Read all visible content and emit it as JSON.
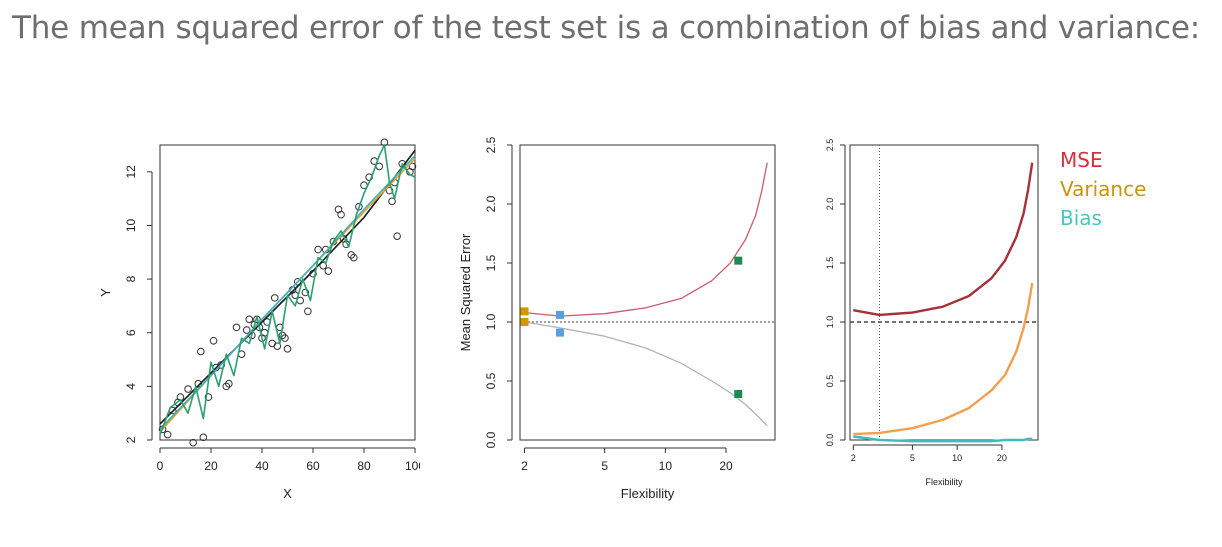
{
  "headline": "The mean squared error of the test set is a combination of bias and variance:",
  "chart_data": [
    {
      "type": "scatter",
      "xlabel": "X",
      "ylabel": "Y",
      "xlim": [
        0,
        100
      ],
      "ylim": [
        2,
        13
      ],
      "xticks": [
        "0",
        "20",
        "40",
        "60",
        "80",
        "100"
      ],
      "yticks": [
        "2",
        "4",
        "6",
        "8",
        "10",
        "12"
      ],
      "points": [
        [
          1,
          2.4
        ],
        [
          3,
          2.2
        ],
        [
          5,
          3.1
        ],
        [
          7,
          3.4
        ],
        [
          8,
          3.6
        ],
        [
          11,
          3.9
        ],
        [
          13,
          1.9
        ],
        [
          15,
          4.1
        ],
        [
          16,
          5.3
        ],
        [
          17,
          2.1
        ],
        [
          19,
          3.6
        ],
        [
          21,
          5.7
        ],
        [
          22,
          4.7
        ],
        [
          24,
          4.8
        ],
        [
          26,
          4.0
        ],
        [
          27,
          4.1
        ],
        [
          30,
          6.2
        ],
        [
          32,
          5.2
        ],
        [
          34,
          6.1
        ],
        [
          35,
          6.5
        ],
        [
          36,
          5.9
        ],
        [
          37,
          6.3
        ],
        [
          38,
          6.5
        ],
        [
          39,
          6.2
        ],
        [
          40,
          5.8
        ],
        [
          41,
          6.0
        ],
        [
          42,
          6.4
        ],
        [
          44,
          5.6
        ],
        [
          45,
          7.3
        ],
        [
          46,
          5.5
        ],
        [
          47,
          6.2
        ],
        [
          48,
          5.9
        ],
        [
          49,
          5.8
        ],
        [
          50,
          5.4
        ],
        [
          52,
          7.6
        ],
        [
          53,
          7.4
        ],
        [
          54,
          7.9
        ],
        [
          55,
          7.2
        ],
        [
          57,
          7.5
        ],
        [
          58,
          6.8
        ],
        [
          60,
          8.2
        ],
        [
          62,
          9.1
        ],
        [
          64,
          8.5
        ],
        [
          65,
          9.1
        ],
        [
          66,
          8.3
        ],
        [
          68,
          9.4
        ],
        [
          70,
          10.6
        ],
        [
          71,
          10.4
        ],
        [
          72,
          9.5
        ],
        [
          73,
          9.3
        ],
        [
          75,
          8.9
        ],
        [
          76,
          8.8
        ],
        [
          78,
          10.7
        ],
        [
          80,
          11.5
        ],
        [
          82,
          11.8
        ],
        [
          84,
          12.4
        ],
        [
          86,
          12.2
        ],
        [
          88,
          13.1
        ],
        [
          90,
          11.3
        ],
        [
          91,
          10.9
        ],
        [
          92,
          11.6
        ],
        [
          93,
          9.6
        ],
        [
          95,
          12.3
        ],
        [
          98,
          12.0
        ],
        [
          99,
          12.2
        ]
      ],
      "series": [
        {
          "color": "#1a1a1a",
          "x": [
            0,
            20,
            40,
            60,
            80,
            100
          ],
          "y": [
            2.6,
            4.5,
            6.4,
            8.3,
            10.3,
            12.8
          ]
        },
        {
          "color": "#e8a020",
          "x": [
            0,
            20,
            40,
            60,
            80,
            100
          ],
          "y": [
            2.3,
            4.4,
            6.5,
            8.5,
            10.5,
            12.5
          ]
        },
        {
          "color": "#3ab0c8",
          "x": [
            0,
            20,
            40,
            60,
            80,
            100
          ],
          "y": [
            2.4,
            4.4,
            6.5,
            8.5,
            10.6,
            12.6
          ]
        },
        {
          "color": "#2aa070",
          "x": [
            0,
            4,
            8,
            11,
            14,
            17,
            20,
            23,
            26,
            29,
            32,
            35,
            38,
            41,
            44,
            47,
            50,
            53,
            56,
            59,
            62,
            65,
            68,
            71,
            74,
            77,
            80,
            83,
            86,
            88,
            90,
            92,
            95,
            98,
            100
          ],
          "y": [
            2.2,
            3.2,
            3.5,
            3.0,
            4.0,
            2.8,
            4.9,
            4.0,
            5.2,
            4.4,
            5.8,
            5.6,
            6.6,
            5.4,
            6.8,
            5.6,
            7.4,
            7.0,
            8.0,
            7.2,
            8.8,
            8.6,
            9.4,
            9.8,
            9.2,
            10.4,
            11.2,
            11.8,
            12.6,
            13.0,
            11.6,
            11.0,
            12.3,
            11.9,
            11.8
          ]
        }
      ]
    },
    {
      "type": "line",
      "xlabel": "Flexibility",
      "ylabel": "Mean Squared Error",
      "xscale": "log",
      "xlim": [
        1.9,
        35
      ],
      "ylim": [
        0,
        2.5
      ],
      "xticks": [
        "2",
        "5",
        "10",
        "20"
      ],
      "yticks": [
        "0.0",
        "0.5",
        "1.0",
        "1.5",
        "2.0",
        "2.5"
      ],
      "hline": 1.0,
      "series": [
        {
          "color": "#cd5c6a",
          "x": [
            2,
            3,
            5,
            8,
            12,
            17,
            21,
            25,
            28,
            30,
            32
          ],
          "y": [
            1.08,
            1.05,
            1.07,
            1.12,
            1.2,
            1.35,
            1.5,
            1.7,
            1.9,
            2.1,
            2.35
          ]
        },
        {
          "color": "#b3b3b3",
          "x": [
            2,
            3,
            5,
            8,
            12,
            17,
            21,
            25,
            28,
            30,
            32
          ],
          "y": [
            1.0,
            0.95,
            0.88,
            0.78,
            0.65,
            0.5,
            0.4,
            0.3,
            0.22,
            0.17,
            0.12
          ]
        }
      ],
      "markers": [
        {
          "x": 2,
          "y": 1.09,
          "color": "#d4950a"
        },
        {
          "x": 2,
          "y": 1.0,
          "color": "#d4950a"
        },
        {
          "x": 3,
          "y": 1.06,
          "color": "#5b9ee0"
        },
        {
          "x": 3,
          "y": 0.91,
          "color": "#5b9ee0"
        },
        {
          "x": 23,
          "y": 1.52,
          "color": "#1e8a50"
        },
        {
          "x": 23,
          "y": 0.39,
          "color": "#1e8a50"
        }
      ]
    },
    {
      "type": "line",
      "xlabel": "Flexibility",
      "xscale": "log",
      "xlim": [
        1.9,
        35
      ],
      "ylim": [
        0,
        2.5
      ],
      "xticks": [
        "2",
        "5",
        "10",
        "20"
      ],
      "yticks": [
        "0.0",
        "0.5",
        "1.0",
        "1.5",
        "2.0",
        "2.5"
      ],
      "hline": 1.0,
      "vline": 3,
      "series": [
        {
          "name": "MSE",
          "color": "#a8303a",
          "x": [
            2,
            3,
            5,
            8,
            12,
            17,
            21,
            25,
            28,
            30,
            32
          ],
          "y": [
            1.1,
            1.06,
            1.08,
            1.13,
            1.22,
            1.37,
            1.52,
            1.72,
            1.92,
            2.12,
            2.35
          ]
        },
        {
          "name": "Variance",
          "color": "#f0a050",
          "x": [
            2,
            3,
            5,
            8,
            12,
            17,
            21,
            25,
            28,
            30,
            32
          ],
          "y": [
            0.05,
            0.06,
            0.1,
            0.17,
            0.27,
            0.42,
            0.55,
            0.75,
            0.95,
            1.12,
            1.33
          ]
        },
        {
          "name": "Bias",
          "color": "#3cbcbc",
          "x": [
            2,
            3,
            5,
            8,
            12,
            17,
            21,
            25,
            28,
            30,
            32
          ],
          "y": [
            0.03,
            0.0,
            -0.01,
            -0.01,
            -0.01,
            -0.01,
            0.0,
            0.0,
            0.0,
            0.01,
            0.01
          ]
        }
      ]
    }
  ],
  "legend": [
    {
      "label": "MSE",
      "color": "#d6303c"
    },
    {
      "label": "Variance",
      "color": "#c8960c"
    },
    {
      "label": "Bias",
      "color": "#4cc4c4"
    }
  ]
}
